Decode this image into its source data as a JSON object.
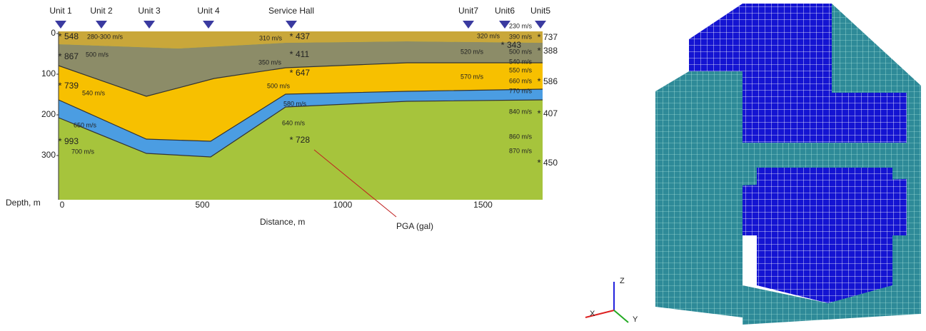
{
  "section": {
    "units": [
      "Unit 1",
      "Unit 2",
      "Unit 3",
      "Unit 4",
      "Service Hall",
      "Unit7",
      "Unit6",
      "Unit5"
    ],
    "depth_ticks": [
      0,
      100,
      200,
      300
    ],
    "depth_label": "Depth, m",
    "distance_ticks": [
      0,
      500,
      1000,
      1500
    ],
    "distance_label": "Distance, m",
    "pga": [
      "548",
      "867",
      "739",
      "993",
      "437",
      "411",
      "647",
      "728",
      "737",
      "388",
      "586",
      "407",
      "450",
      "343"
    ],
    "velocities": [
      "280-300 m/s",
      "500 m/s",
      "540 m/s",
      "650 m/s",
      "700 m/s",
      "310 m/s",
      "350 m/s",
      "500 m/s",
      "580 m/s",
      "640 m/s",
      "520 m/s",
      "570 m/s",
      "320 m/s",
      "230 m/s",
      "390 m/s",
      "500 m/s",
      "540 m/s",
      "550 m/s",
      "660 m/s",
      "770 m/s",
      "840 m/s",
      "860 m/s",
      "870 m/s"
    ],
    "pga_note": "PGA (gal)"
  },
  "mesh": {
    "axes": [
      "X",
      "Y",
      "Z"
    ]
  }
}
